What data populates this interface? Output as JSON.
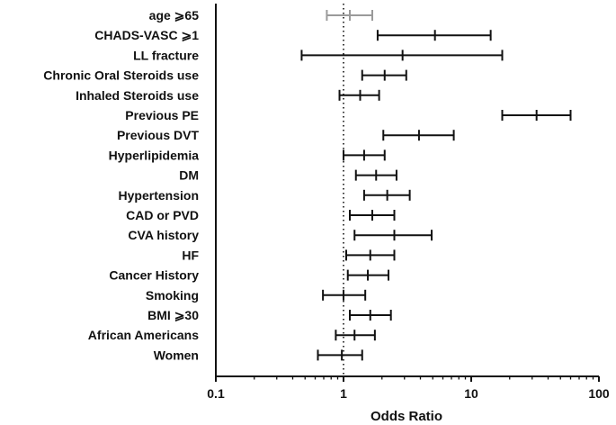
{
  "chart_data": {
    "type": "forest",
    "xlabel": "Odds Ratio",
    "x_scale": "log",
    "xlim": [
      0.1,
      100
    ],
    "x_ticks": [
      {
        "value": 0.1,
        "label": "0.1"
      },
      {
        "value": 1,
        "label": "1"
      },
      {
        "value": 10,
        "label": "10"
      },
      {
        "value": 100,
        "label": "100"
      }
    ],
    "reference_line": 1,
    "rows": [
      {
        "label": "age ⩾65",
        "or": 1.12,
        "lower": 0.74,
        "upper": 1.68,
        "color": "#9a9a9a"
      },
      {
        "label": "CHADS-VASC ⩾1",
        "or": 5.2,
        "lower": 1.85,
        "upper": 14.2,
        "color": "#111111"
      },
      {
        "label": "LL fracture",
        "or": 2.9,
        "lower": 0.47,
        "upper": 17.5,
        "color": "#111111"
      },
      {
        "label": "Chronic Oral Steroids use",
        "or": 2.1,
        "lower": 1.4,
        "upper": 3.1,
        "color": "#111111"
      },
      {
        "label": "Inhaled Steroids use",
        "or": 1.35,
        "lower": 0.93,
        "upper": 1.9,
        "color": "#111111"
      },
      {
        "label": "Previous PE",
        "or": 32.5,
        "lower": 17.5,
        "upper": 60.0,
        "color": "#111111"
      },
      {
        "label": "Previous DVT",
        "or": 3.9,
        "lower": 2.05,
        "upper": 7.3,
        "color": "#111111"
      },
      {
        "label": "Hyperlipidemia",
        "or": 1.45,
        "lower": 1.0,
        "upper": 2.1,
        "color": "#111111"
      },
      {
        "label": "DM",
        "or": 1.8,
        "lower": 1.25,
        "upper": 2.6,
        "color": "#111111"
      },
      {
        "label": "Hypertension",
        "or": 2.2,
        "lower": 1.45,
        "upper": 3.3,
        "color": "#111111"
      },
      {
        "label": "CAD or PVD",
        "or": 1.68,
        "lower": 1.12,
        "upper": 2.5,
        "color": "#111111"
      },
      {
        "label": "CVA history",
        "or": 2.5,
        "lower": 1.22,
        "upper": 4.9,
        "color": "#111111"
      },
      {
        "label": "HF",
        "or": 1.62,
        "lower": 1.05,
        "upper": 2.5,
        "color": "#111111"
      },
      {
        "label": "Cancer History",
        "or": 1.55,
        "lower": 1.08,
        "upper": 2.25,
        "color": "#111111"
      },
      {
        "label": "Smoking",
        "or": 1.0,
        "lower": 0.69,
        "upper": 1.48,
        "color": "#111111"
      },
      {
        "label": "BMI ⩾30",
        "or": 1.62,
        "lower": 1.12,
        "upper": 2.35,
        "color": "#111111"
      },
      {
        "label": "African Americans",
        "or": 1.22,
        "lower": 0.87,
        "upper": 1.76,
        "color": "#111111"
      },
      {
        "label": "Women",
        "or": 0.97,
        "lower": 0.63,
        "upper": 1.4,
        "color": "#111111"
      }
    ]
  }
}
